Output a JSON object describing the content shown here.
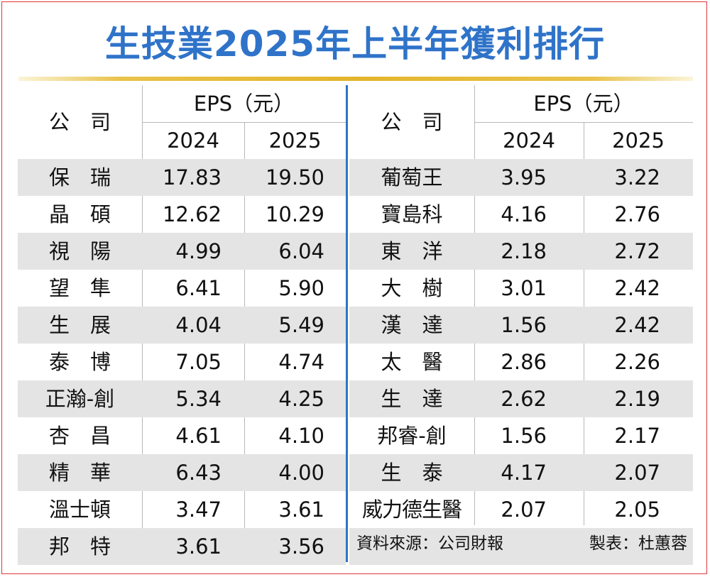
{
  "title": "生技業2025年上半年獲利排行",
  "headers": {
    "company": "公　司",
    "eps": "EPS（元）",
    "y1": "2024",
    "y2": "2025"
  },
  "left_rows": [
    {
      "name": "保　瑞",
      "v2024": "17.83",
      "v2025": "19.50"
    },
    {
      "name": "晶　碩",
      "v2024": "12.62",
      "v2025": "10.29"
    },
    {
      "name": "視　陽",
      "v2024": "4.99",
      "v2025": "6.04"
    },
    {
      "name": "望　隼",
      "v2024": "6.41",
      "v2025": "5.90"
    },
    {
      "name": "生　展",
      "v2024": "4.04",
      "v2025": "5.49"
    },
    {
      "name": "泰　博",
      "v2024": "7.05",
      "v2025": "4.74"
    },
    {
      "name": "正瀚-創",
      "v2024": "5.34",
      "v2025": "4.25"
    },
    {
      "name": "杏　昌",
      "v2024": "4.61",
      "v2025": "4.10"
    },
    {
      "name": "精　華",
      "v2024": "6.43",
      "v2025": "4.00"
    },
    {
      "name": "溫士頓",
      "v2024": "3.47",
      "v2025": "3.61"
    },
    {
      "name": "邦　特",
      "v2024": "3.61",
      "v2025": "3.56"
    }
  ],
  "right_rows": [
    {
      "name": "葡萄王",
      "v2024": "3.95",
      "v2025": "3.22"
    },
    {
      "name": "寶島科",
      "v2024": "4.16",
      "v2025": "2.76"
    },
    {
      "name": "東　洋",
      "v2024": "2.18",
      "v2025": "2.72"
    },
    {
      "name": "大　樹",
      "v2024": "3.01",
      "v2025": "2.42"
    },
    {
      "name": "漢　達",
      "v2024": "1.56",
      "v2025": "2.42"
    },
    {
      "name": "太　醫",
      "v2024": "2.86",
      "v2025": "2.26"
    },
    {
      "name": "生　達",
      "v2024": "2.62",
      "v2025": "2.19"
    },
    {
      "name": "邦睿-創",
      "v2024": "1.56",
      "v2025": "2.17"
    },
    {
      "name": "生　泰",
      "v2024": "4.17",
      "v2025": "2.07"
    },
    {
      "name": "威力德生醫",
      "v2024": "2.07",
      "v2025": "2.05"
    }
  ],
  "footer": {
    "source": "資料來源：公司財報",
    "maker": "製表：杜蕙蓉"
  },
  "colors": {
    "title": "#2f73c9",
    "accent_line": "#e3b52c",
    "row_shade": "#e4e4e4",
    "frame": "#e0363b"
  }
}
